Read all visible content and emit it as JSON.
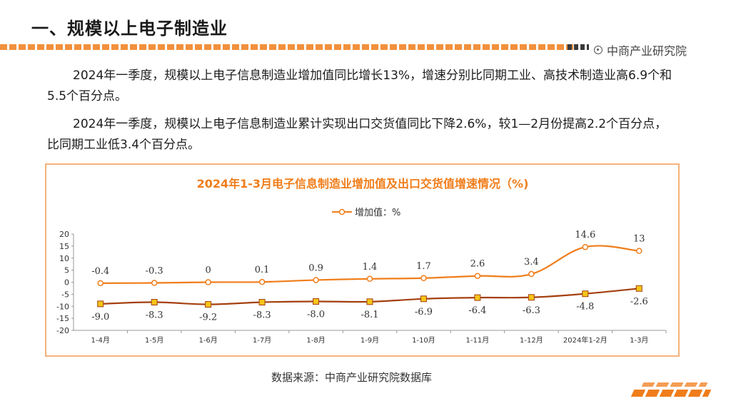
{
  "header": {
    "title": "一、规模以上电子制造业",
    "brand": "中商产业研究院"
  },
  "body": {
    "paragraph1": "2024年一季度，规模以上电子信息制造业增加值同比增长13%，增速分别比同期工业、高技术制造业高6.9个和5.5个百分点。",
    "paragraph2": "2024年一季度，规模以上电子信息制造业累计实现出口交货值同比下降2.6%，较1—2月份提高2.2个百分点，比同期工业低3.4个百分点。"
  },
  "chart_data": {
    "type": "line",
    "title": "2024年1-3月电子信息制造业增加值及出口交货值增速情况（%)",
    "legend": "top-center",
    "categories": [
      "1-4月",
      "1-5月",
      "1-6月",
      "1-7月",
      "1-8月",
      "1-9月",
      "1-10月",
      "1-11月",
      "1-12月",
      "2024年1-2月",
      "1-3月"
    ],
    "series": [
      {
        "name": "增加值：%",
        "color": "#f07d1a",
        "marker": "circle",
        "values": [
          -0.4,
          -0.3,
          0,
          0.1,
          0.9,
          1.4,
          1.7,
          2.6,
          3.4,
          14.6,
          13
        ],
        "labels": [
          "-0.4",
          "-0.3",
          "0",
          "0.1",
          "0.9",
          "1.4",
          "1.7",
          "2.6",
          "3.4",
          "14.6",
          "13"
        ]
      },
      {
        "name": "",
        "color": "#a4400f",
        "marker_fill": "#f5c518",
        "marker": "square",
        "values": [
          -9.0,
          -8.3,
          -9.2,
          -8.3,
          -8.0,
          -8.1,
          -6.9,
          -6.4,
          -6.3,
          -4.8,
          -2.6
        ],
        "labels": [
          "-9.0",
          "-8.3",
          "-9.2",
          "-8.3",
          "-8.0",
          "-8.1",
          "-6.9",
          "-6.4",
          "-6.3",
          "-4.8",
          "-2.6"
        ]
      }
    ],
    "ylim": [
      -20,
      20
    ],
    "yticks": [
      20,
      15,
      10,
      5,
      0,
      -5,
      -10,
      -15,
      -20
    ],
    "grid": false
  },
  "footer": {
    "source": "数据来源：中商产业研究院数据库"
  }
}
